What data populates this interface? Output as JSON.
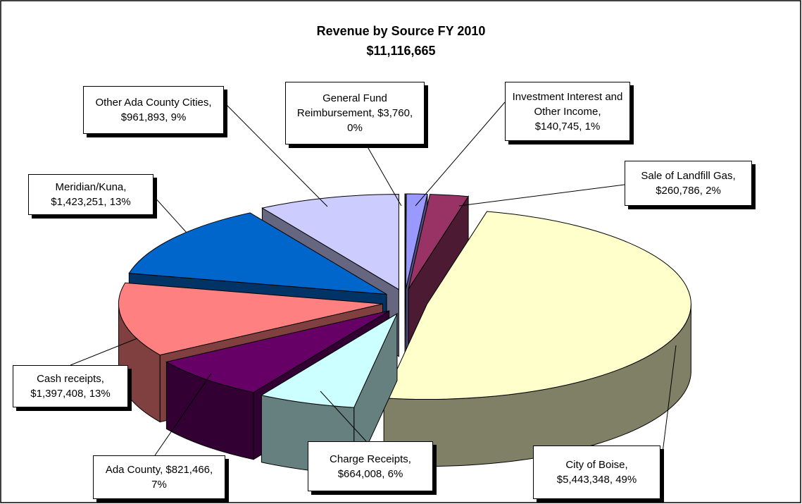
{
  "chart_data": {
    "type": "pie3d",
    "title": "Revenue by Source FY 2010",
    "subtitle": "$11,116,665",
    "categories": [
      "General Fund Reimbursement",
      "Investment Interest and Other Income",
      "Sale of Landfill Gas",
      "City of Boise",
      "Charge Receipts",
      "Ada County",
      "Cash receipts",
      "Meridian/Kuna",
      "Other Ada County Cities"
    ],
    "values": [
      3760,
      140745,
      260786,
      5443348,
      664008,
      821466,
      1397408,
      1423251,
      961893
    ],
    "value_labels": [
      "General Fund Reimbursement, $3,760, 0%",
      "Investment Interest and Other Income, $140,745, 1%",
      "Sale of Landfill Gas, $260,786, 2%",
      "City of Boise, $5,443,348, 49%",
      "Charge Receipts, $664,008, 6%",
      "Ada County, $821,466, 7%",
      "Cash receipts, $1,397,408, 13%",
      "Meridian/Kuna, $1,423,251, 13%",
      "Other Ada County Cities, $961,893, 9%"
    ],
    "colors": [
      "#8080ff",
      "#9999ff",
      "#993366",
      "#ffffcc",
      "#ccffff",
      "#660066",
      "#ff8080",
      "#0066cc",
      "#ccccff"
    ]
  }
}
